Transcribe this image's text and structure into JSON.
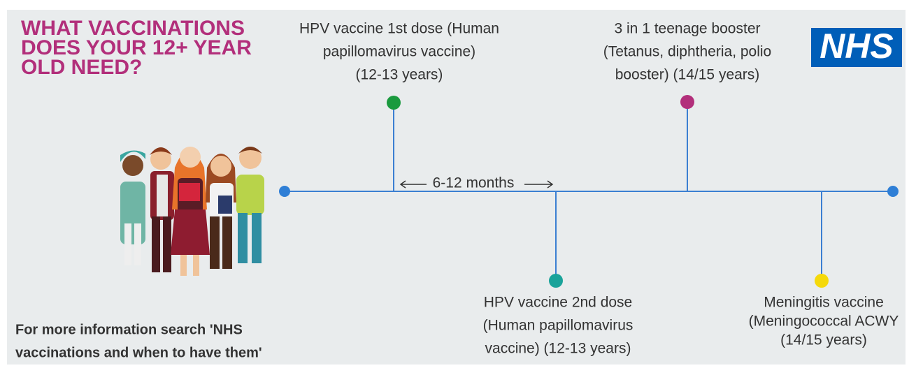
{
  "title": [
    "WHAT VACCINATIONS",
    "DOES YOUR 12+ YEAR",
    "OLD NEED?"
  ],
  "logo": "NHS",
  "events": [
    {
      "label": [
        "HPV vaccine 1st dose (Human",
        "papillomavirus vaccine)",
        "(12-13 years)"
      ]
    },
    {
      "label": [
        "3 in 1 teenage booster",
        "(Tetanus, diphtheria, polio",
        "booster) (14/15 years)"
      ]
    },
    {
      "label": [
        "HPV vaccine 2nd dose",
        "(Human papillomavirus",
        "vaccine)  (12-13 years)"
      ]
    },
    {
      "label": [
        "Meningitis vaccine",
        "(Meningococcal ACWY",
        "(14/15 years)"
      ]
    }
  ],
  "interval": "6-12 months",
  "footer": [
    "For more information search 'NHS",
    "vaccinations and when to have them'"
  ]
}
